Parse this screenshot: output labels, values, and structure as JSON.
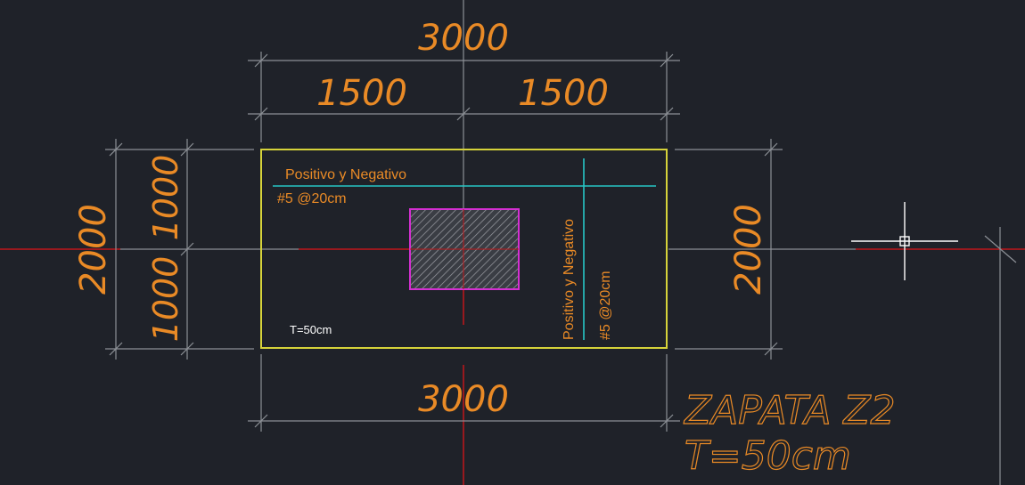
{
  "drawing": {
    "top_total": "3000",
    "top_left_half": "1500",
    "top_right_half": "1500",
    "bottom_total": "3000",
    "left_total": "2000",
    "left_upper": "1000",
    "left_lower": "1000",
    "right_total": "2000",
    "rebar_horizontal_label": "Positivo y Negativo",
    "rebar_horizontal_spec": "#5 @20cm",
    "rebar_vertical_label": "Positivo y Negativo",
    "rebar_vertical_spec": "#5 @20cm",
    "thickness_note": "T=50cm",
    "title_line1": "ZAPATA  Z2",
    "title_line2": "T=50cm"
  },
  "colors": {
    "background": "#1f2229",
    "footing_outline": "#d6d33a",
    "column_outline": "#d52fd2",
    "rebar": "#27c6c6",
    "dimension_text": "#e98a26",
    "axis_red": "#c0161a",
    "dimension_lines": "#8c9096"
  }
}
